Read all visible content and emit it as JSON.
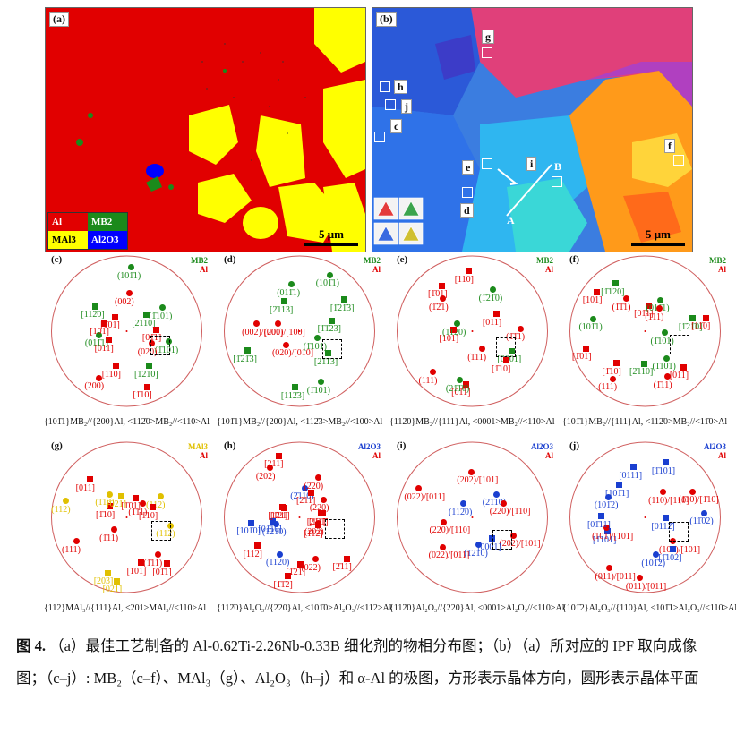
{
  "maps": {
    "a": {
      "tag": "(a)",
      "scale": "5 μm",
      "legend": [
        {
          "label": "Al",
          "color": "#e10000",
          "text_color": "#ffffff"
        },
        {
          "label": "MB2",
          "color": "#1b8a1b",
          "text_color": "#ffffff"
        },
        {
          "label": "MAl3",
          "color": "#ffff00",
          "text_color": "#000000"
        },
        {
          "label": "Al2O3",
          "color": "#0000ff",
          "text_color": "#ffffff"
        }
      ]
    },
    "b": {
      "tag": "(b)",
      "scale": "5 μm",
      "regions": [
        "g",
        "h",
        "j",
        "c",
        "e",
        "d",
        "i",
        "f"
      ],
      "line_labels": [
        "A",
        "B"
      ]
    }
  },
  "pole_figures": [
    {
      "tag": "(c)",
      "key": [
        "MB2",
        "Al"
      ],
      "key_colors": [
        "#1b8a1b",
        "#e10000"
      ],
      "relation": "{10 1 1}MB2//{200}Al, <11 2 0>MB2//<110>Al",
      "relation_text": "{101̄1}MB₂//{200}Al, <112̄0>MB₂//<110>Al"
    },
    {
      "tag": "(d)",
      "key": [
        "MB2",
        "Al"
      ],
      "key_colors": [
        "#1b8a1b",
        "#e10000"
      ],
      "relation_text": "{101̄1}MB₂//{200}Al, <112̄3>MB₂//<100>Al"
    },
    {
      "tag": "(e)",
      "key": [
        "MB2",
        "Al"
      ],
      "key_colors": [
        "#1b8a1b",
        "#e10000"
      ],
      "relation_text": "{112̄0}MB₂//{111}Al, <0001>MB₂//<110>Al"
    },
    {
      "tag": "(f)",
      "key": [
        "MB2",
        "Al"
      ],
      "key_colors": [
        "#1b8a1b",
        "#e10000"
      ],
      "relation_text": "{101̄1}MB₂//{111}Al, <112̄0>MB₂//<11̄0>Al"
    },
    {
      "tag": "(g)",
      "key": [
        "MAl3",
        "Al"
      ],
      "key_colors": [
        "#e0c000",
        "#e10000"
      ],
      "relation_text": "{112}MAl₃//{111}Al, <201>MAl₃//<110>Al"
    },
    {
      "tag": "(h)",
      "key": [
        "Al2O3",
        "Al"
      ],
      "key_colors": [
        "#1a3fd0",
        "#e10000"
      ],
      "relation_text": "{112̄0}Al₂O₃//{220}Al, <101̄0>Al₂O₃//<112>Al"
    },
    {
      "tag": "(i)",
      "key": [
        "Al2O3",
        "Al"
      ],
      "key_colors": [
        "#1a3fd0",
        "#e10000"
      ],
      "relation_text": "{112̄0}Al₂O₃//{220}Al, <0001>Al₂O₃//<110>Al"
    },
    {
      "tag": "(j)",
      "key": [
        "Al2O3",
        "Al"
      ],
      "key_colors": [
        "#1a3fd0",
        "#e10000"
      ],
      "relation_text": "{101̄2}Al₂O₃//{110}Al, <101̄1>Al₂O₃//<110>Al"
    }
  ],
  "pole_labels": {
    "c": [
      {
        "t": "(1̄101)",
        "c": "g"
      },
      {
        "t": "(020)",
        "c": "r"
      },
      {
        "t": "[1̄21̄0]",
        "c": "g"
      },
      {
        "t": "[1̄10]",
        "c": "r"
      },
      {
        "t": "[110]",
        "c": "r"
      },
      {
        "t": "(200)",
        "c": "r"
      },
      {
        "t": "[011]",
        "c": "r"
      },
      {
        "t": "(011̄1)",
        "c": "g"
      },
      {
        "t": "[101]",
        "c": "r"
      },
      {
        "t": "[112̄0]",
        "c": "g"
      },
      {
        "t": "[1̄01]",
        "c": "r"
      },
      {
        "t": "(101̄1)",
        "c": "g"
      },
      {
        "t": "(002)",
        "c": "r"
      },
      {
        "t": "[2̄110]",
        "c": "g"
      },
      {
        "t": "(1̄101)",
        "c": "g"
      },
      {
        "t": "[01̄1]",
        "c": "r"
      }
    ],
    "d": [
      {
        "t": "(1̄101)",
        "c": "g"
      },
      {
        "t": "[21̄1̄3]",
        "c": "g"
      },
      {
        "t": "(1̄101)",
        "c": "g"
      },
      {
        "t": "[112̄3]",
        "c": "g"
      },
      {
        "t": "(020)/[010]",
        "c": "r"
      },
      {
        "t": "[1̄21̄3]",
        "c": "g"
      },
      {
        "t": "(002)/[001]",
        "c": "r"
      },
      {
        "t": "(200)/[100]",
        "c": "r"
      },
      {
        "t": "[2̄113]",
        "c": "g"
      },
      {
        "t": "(011̄1)",
        "c": "g"
      },
      {
        "t": "(101̄1)",
        "c": "g"
      },
      {
        "t": "[1̄21̄3]",
        "c": "g"
      },
      {
        "t": "[1̄1̄23]",
        "c": "g"
      }
    ],
    "e": [
      {
        "t": "[0001]",
        "c": "g"
      },
      {
        "t": "[1̄10]",
        "c": "r"
      },
      {
        "t": "(1̄11)",
        "c": "r"
      },
      {
        "t": "[01̄1]",
        "c": "r"
      },
      {
        "t": "(21̄1̄0)",
        "c": "g"
      },
      {
        "t": "(111)",
        "c": "r"
      },
      {
        "t": "[101]",
        "c": "r"
      },
      {
        "t": "(112̄0)",
        "c": "g"
      },
      {
        "t": "(1̄2̄1)",
        "c": "r"
      },
      {
        "t": "[1̄01]",
        "c": "r"
      },
      {
        "t": "[110]",
        "c": "r"
      },
      {
        "t": "(1̄21̄0)",
        "c": "g"
      },
      {
        "t": "[011]",
        "c": "r"
      },
      {
        "t": "(1̄1̄1)",
        "c": "r"
      }
    ],
    "f": [
      {
        "t": "(1̄101)",
        "c": "g"
      },
      {
        "t": "[011]",
        "c": "r"
      },
      {
        "t": "(1̄10̄1)",
        "c": "g"
      },
      {
        "t": "(1̄11)",
        "c": "r"
      },
      {
        "t": "[2̄110]",
        "c": "g"
      },
      {
        "t": "(111)",
        "c": "r"
      },
      {
        "t": "[1̄10]",
        "c": "r"
      },
      {
        "t": "[1̄01]",
        "c": "r"
      },
      {
        "t": "(101̄1)",
        "c": "g"
      },
      {
        "t": "[101]",
        "c": "r"
      },
      {
        "t": "[1̄120]",
        "c": "g"
      },
      {
        "t": "(1̄1̄1)",
        "c": "r"
      },
      {
        "t": "[01̄1]",
        "c": "r"
      },
      {
        "t": "(011̄1)",
        "c": "g"
      },
      {
        "t": "(1̄11)",
        "c": "r"
      },
      {
        "t": "[1̄21̄0]",
        "c": "g"
      },
      {
        "t": "[11̄0]",
        "c": "r"
      }
    ],
    "g": [
      {
        "t": "(112)",
        "c": "y"
      },
      {
        "t": "[01̄1]",
        "c": "r"
      },
      {
        "t": "(1̄11)",
        "c": "r"
      },
      {
        "t": "[1̄01]",
        "c": "r"
      },
      {
        "t": "[021]",
        "c": "y"
      },
      {
        "t": "[203]",
        "c": "y"
      },
      {
        "t": "(1̄11)",
        "c": "r"
      },
      {
        "t": "(111)",
        "c": "r"
      },
      {
        "t": "(112)",
        "c": "y"
      },
      {
        "t": "[1̄10]",
        "c": "r"
      },
      {
        "t": "[011]",
        "c": "r"
      },
      {
        "t": "(1̄12)",
        "c": "y"
      },
      {
        "t": "[021]",
        "c": "y"
      },
      {
        "t": "[1̄01]",
        "c": "r"
      },
      {
        "t": "(1̄11)",
        "c": "r"
      },
      {
        "t": "(112)",
        "c": "y"
      },
      {
        "t": "[1̄10]",
        "c": "r"
      }
    ],
    "h": [
      {
        "t": "(202)",
        "c": "r"
      },
      {
        "t": "[1̄12]",
        "c": "r"
      },
      {
        "t": "[2̄11]",
        "c": "r"
      },
      {
        "t": "(022)",
        "c": "r"
      },
      {
        "t": "[1̄21]",
        "c": "r"
      },
      {
        "t": "[1̄1̄2]",
        "c": "r"
      },
      {
        "t": "(11̄20)",
        "c": "b"
      },
      {
        "t": "[112]",
        "c": "r"
      },
      {
        "t": "(1̄21̄0)",
        "c": "b"
      },
      {
        "t": "[01̄10]",
        "c": "b"
      },
      {
        "t": "[101̄0]",
        "c": "b"
      },
      {
        "t": "[121]",
        "c": "r"
      },
      {
        "t": "[1̄21]",
        "c": "r"
      },
      {
        "t": "(202)",
        "c": "r"
      },
      {
        "t": "[211]",
        "c": "r"
      },
      {
        "t": "(2̄110)",
        "c": "b"
      },
      {
        "t": "(2̄20)",
        "c": "r"
      },
      {
        "t": "[2̄11]",
        "c": "r"
      },
      {
        "t": "(220)",
        "c": "r"
      },
      {
        "t": "[121̄]",
        "c": "r"
      },
      {
        "t": "[211̄]",
        "c": "r"
      }
    ],
    "i": [
      {
        "t": "(202)/[101]",
        "c": "r"
      },
      {
        "t": "[0001]",
        "c": "b"
      },
      {
        "t": "(1̄21̄0)",
        "c": "b"
      },
      {
        "t": "(022)/[011]",
        "c": "r"
      },
      {
        "t": "(220)/[110]",
        "c": "r"
      },
      {
        "t": "(022)/[011]",
        "c": "r"
      },
      {
        "t": "(112̄0)",
        "c": "b"
      },
      {
        "t": "(202)/[101]",
        "c": "r"
      },
      {
        "t": "(2̄1̄10)",
        "c": "b"
      },
      {
        "t": "(220)/[1̄10]",
        "c": "r"
      }
    ],
    "j": [
      {
        "t": "[0112̄]",
        "c": "b"
      },
      {
        "t": "(101)/[101]",
        "c": "r"
      },
      {
        "t": "[1̄102]",
        "c": "b"
      },
      {
        "t": "(101̄2)",
        "c": "b"
      },
      {
        "t": "(011)/[011]",
        "c": "r"
      },
      {
        "t": "(011)/[011]",
        "c": "r"
      },
      {
        "t": "[1̄101]",
        "c": "b"
      },
      {
        "t": "(101)/[101]",
        "c": "r"
      },
      {
        "t": "[01̄11]",
        "c": "b"
      },
      {
        "t": "(101̄2)",
        "c": "b"
      },
      {
        "t": "[101̄1]",
        "c": "b"
      },
      {
        "t": "[0111]",
        "c": "b"
      },
      {
        "t": "[1̄101]",
        "c": "b"
      },
      {
        "t": "(110)/[110]",
        "c": "r"
      },
      {
        "t": "(1̄10)/[1̄10]",
        "c": "r"
      },
      {
        "t": "(11̄02)",
        "c": "b"
      }
    ]
  },
  "caption": {
    "figure_label": "图 4.",
    "text": "（a）最佳工艺制备的 Al-0.62Ti-2.26Nb-0.33B 细化剂的物相分布图；（b）（a）所对应的 IPF 取向成像图；（c–j）: MB₂（c–f）、MAl₃（g）、Al₂O₃（h–j）和 α-Al 的极图，方形表示晶体方向，圆形表示晶体平面"
  }
}
